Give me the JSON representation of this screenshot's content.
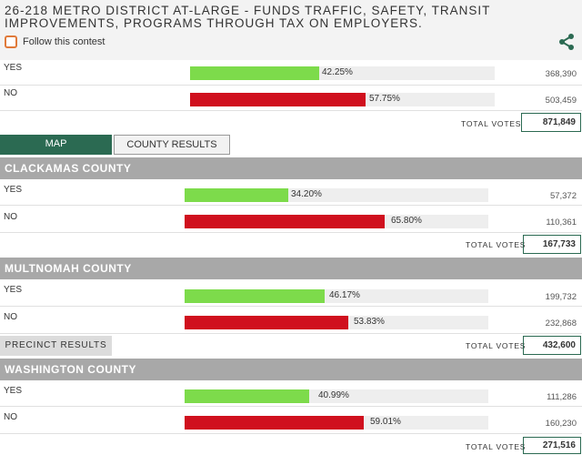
{
  "contest": {
    "title": "26-218 Metro District At-Large - Funds Traffic, Safety, Transit Improvements, Programs Through Tax On Employers.",
    "follow_label": "Follow this contest",
    "share_icon": "share-icon"
  },
  "overall": {
    "rows": [
      {
        "choice": "YES",
        "percent_label": "42.25%",
        "fraction": 0.4225,
        "votes": "368,390"
      },
      {
        "choice": "NO",
        "percent_label": "57.75%",
        "fraction": 0.5775,
        "votes": "503,459"
      }
    ],
    "total_label": "TOTAL VOTES",
    "total_value": "871,849"
  },
  "tabs": {
    "map_label": "MAP",
    "county_label": "COUNTY RESULTS"
  },
  "counties": [
    {
      "name": "CLACKAMAS COUNTY",
      "rows": [
        {
          "choice": "YES",
          "percent_label": "34.20%",
          "fraction": 0.342,
          "votes": "57,372"
        },
        {
          "choice": "NO",
          "percent_label": "65.80%",
          "fraction": 0.658,
          "votes": "110,361"
        }
      ],
      "total_label": "TOTAL VOTES",
      "total_value": "167,733"
    },
    {
      "name": "MULTNOMAH COUNTY",
      "rows": [
        {
          "choice": "YES",
          "percent_label": "46.17%",
          "fraction": 0.4617,
          "votes": "199,732"
        },
        {
          "choice": "NO",
          "percent_label": "53.83%",
          "fraction": 0.5383,
          "votes": "232,868"
        }
      ],
      "total_label": "TOTAL VOTES",
      "total_value": "432,600"
    },
    {
      "name": "WASHINGTON COUNTY",
      "rows": [
        {
          "choice": "YES",
          "percent_label": "40.99%",
          "fraction": 0.4099,
          "votes": "111,286"
        },
        {
          "choice": "NO",
          "percent_label": "59.01%",
          "fraction": 0.5901,
          "votes": "160,230"
        }
      ],
      "total_label": "TOTAL VOTES",
      "total_value": "271,516"
    }
  ],
  "precinct_button_label": "PRECINCT RESULTS",
  "colors": {
    "yes": "#7ddb4b",
    "no": "#d0101e",
    "accent": "#2b6a52",
    "county_header": "#a8a8a8"
  }
}
